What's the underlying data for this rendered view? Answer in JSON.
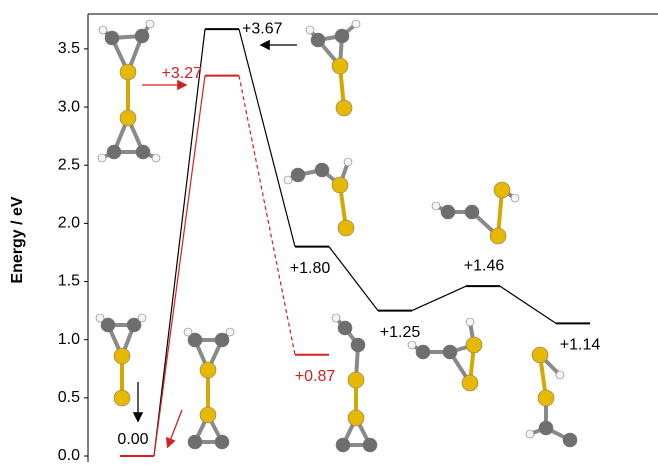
{
  "chart_data": {
    "type": "energy-levels",
    "y_label": "Energy / eV",
    "ylim": [
      0,
      3.8
    ],
    "yticks": [
      {
        "value": 0,
        "label": "0.0"
      },
      0.5,
      {
        "value": 1,
        "label": "1.0"
      },
      1.5,
      {
        "value": 2,
        "label": "2.0"
      },
      2.5,
      {
        "value": 3,
        "label": "3.0"
      },
      3.5
    ],
    "series": [
      {
        "color": "#000000",
        "dash": false,
        "values": [
          0.0,
          3.67,
          1.8,
          1.25,
          1.46,
          1.14
        ],
        "value_labels": [
          "0.00",
          "+3.67",
          "+1.80",
          "+1.25",
          "+1.46",
          "+1.14"
        ]
      },
      {
        "color": "#d42020",
        "dash": true,
        "values": [
          0.0,
          3.27,
          0.87
        ],
        "value_labels": [
          null,
          "+3.27",
          "+0.87"
        ]
      }
    ]
  }
}
